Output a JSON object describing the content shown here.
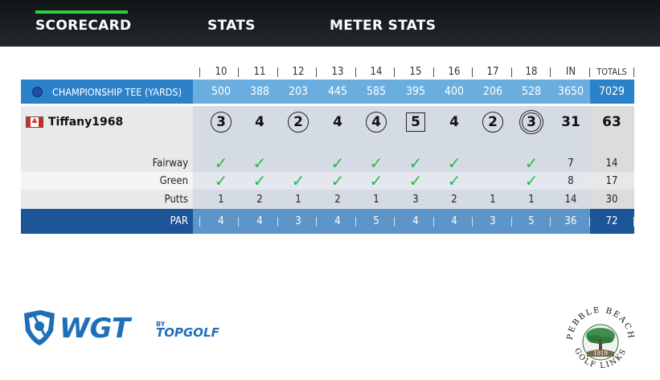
{
  "tabs": [
    {
      "label": "SCORECARD",
      "active": true
    },
    {
      "label": "STATS",
      "active": false
    },
    {
      "label": "METER STATS",
      "active": false
    }
  ],
  "header": {
    "holes": [
      "10",
      "11",
      "12",
      "13",
      "14",
      "15",
      "16",
      "17",
      "18"
    ],
    "in_label": "IN",
    "totals_label": "TOTALS"
  },
  "tee": {
    "label": "CHAMPIONSHIP TEE (YARDS)",
    "yards": [
      "500",
      "388",
      "203",
      "445",
      "585",
      "395",
      "400",
      "206",
      "528"
    ],
    "in": "3650",
    "total": "7029"
  },
  "player": {
    "name": "Tiffany1968",
    "flag": "canada-flag",
    "scores": [
      {
        "value": "3",
        "mark": "circle"
      },
      {
        "value": "4",
        "mark": "none"
      },
      {
        "value": "2",
        "mark": "circle"
      },
      {
        "value": "4",
        "mark": "none"
      },
      {
        "value": "4",
        "mark": "circle"
      },
      {
        "value": "5",
        "mark": "square"
      },
      {
        "value": "4",
        "mark": "none"
      },
      {
        "value": "2",
        "mark": "circle"
      },
      {
        "value": "3",
        "mark": "double-circle"
      }
    ],
    "in": "31",
    "total": "63"
  },
  "stats": {
    "fairway": {
      "label": "Fairway",
      "hits": [
        true,
        true,
        false,
        true,
        true,
        true,
        true,
        false,
        true
      ],
      "in": "7",
      "total": "14"
    },
    "green": {
      "label": "Green",
      "hits": [
        true,
        true,
        true,
        true,
        true,
        true,
        true,
        false,
        true
      ],
      "in": "8",
      "total": "17"
    },
    "putts": {
      "label": "Putts",
      "values": [
        "1",
        "2",
        "1",
        "2",
        "1",
        "3",
        "2",
        "1",
        "1"
      ],
      "in": "14",
      "total": "30"
    }
  },
  "par": {
    "label": "PAR",
    "values": [
      "4",
      "4",
      "3",
      "4",
      "5",
      "4",
      "4",
      "3",
      "5"
    ],
    "in": "36",
    "total": "72"
  },
  "logos": {
    "wgt_text": "WGT",
    "by_text": "BY",
    "topgolf_text": "TOPGOLF",
    "pebble_top": "PEBBLE BEACH",
    "pebble_bottom": "GOLF LINKS",
    "pebble_year": "1919"
  },
  "colors": {
    "tee_light": "#6aaee0",
    "tee_dark": "#2c82c9",
    "par_dark": "#1c5597",
    "par_light": "#5e95c8",
    "check": "#2eb84e",
    "tab_underline": "#2ecc40"
  }
}
